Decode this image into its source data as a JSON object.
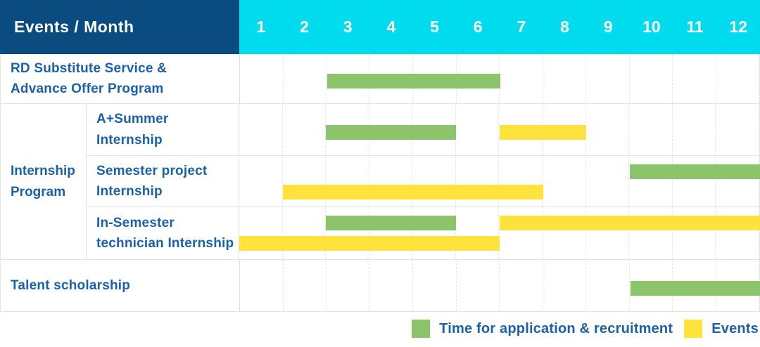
{
  "table": {
    "header": {
      "title": "Events / Month",
      "months": [
        "1",
        "2",
        "3",
        "4",
        "5",
        "6",
        "7",
        "8",
        "9",
        "10",
        "11",
        "12"
      ]
    },
    "rows": {
      "rd": {
        "label": "RD Substitute Service &\nAdvance Offer Program",
        "bars": [
          {
            "color": "green",
            "start": 3,
            "end": 6,
            "line": 0
          }
        ]
      },
      "internship": {
        "label": "Internship\nProgram",
        "children": {
          "summer": {
            "label": "A+Summer\nInternship",
            "bars": [
              {
                "color": "green",
                "start": 3,
                "end": 5,
                "line": 0
              },
              {
                "color": "yellow",
                "start": 7,
                "end": 8,
                "line": 0
              }
            ]
          },
          "semester": {
            "label": "Semester project\nInternship",
            "bars": [
              {
                "color": "green",
                "start": 10,
                "end": 12,
                "line": 1
              },
              {
                "color": "yellow",
                "start": 2,
                "end": 7,
                "line": 2
              }
            ]
          },
          "insemester": {
            "label": "In-Semester\ntechnician Internship",
            "bars": [
              {
                "color": "green",
                "start": 3,
                "end": 5,
                "line": 1
              },
              {
                "color": "yellow",
                "start": 7,
                "end": 12,
                "line": 1
              },
              {
                "color": "yellow",
                "start": 1,
                "end": 6,
                "line": 2
              }
            ]
          }
        }
      },
      "talent": {
        "label": "Talent scholarship",
        "bars": [
          {
            "color": "green",
            "start": 10,
            "end": 12,
            "line": 0
          }
        ]
      }
    }
  },
  "legend": {
    "items": [
      {
        "color": "green",
        "label": "Time for application & recruitment"
      },
      {
        "color": "yellow",
        "label": "Events"
      }
    ]
  },
  "colors": {
    "green": "#8cc46b",
    "yellow": "#ffe23c",
    "navy": "#0a4b80",
    "cyan": "#00dbee",
    "text_blue": "#1a61a7"
  },
  "chart_data": {
    "type": "table",
    "title": "Events / Month",
    "x_axis": {
      "label": "Month",
      "ticks": [
        1,
        2,
        3,
        4,
        5,
        6,
        7,
        8,
        9,
        10,
        11,
        12
      ],
      "range": [
        1,
        12
      ]
    },
    "legend": {
      "application": "Time for application & recruitment",
      "event": "Events",
      "position": "bottom-right"
    },
    "rows": [
      {
        "event": "RD Substitute Service & Advance Offer Program",
        "spans": [
          {
            "type": "application",
            "months": [
              3,
              6
            ]
          }
        ]
      },
      {
        "event": "Internship Program - A+Summer Internship",
        "spans": [
          {
            "type": "application",
            "months": [
              3,
              5
            ]
          },
          {
            "type": "event",
            "months": [
              7,
              8
            ]
          }
        ]
      },
      {
        "event": "Internship Program - Semester project Internship",
        "spans": [
          {
            "type": "application",
            "months": [
              10,
              12
            ]
          },
          {
            "type": "event",
            "months": [
              2,
              7
            ]
          }
        ]
      },
      {
        "event": "Internship Program - In-Semester technician Internship",
        "spans": [
          {
            "type": "application",
            "months": [
              3,
              5
            ]
          },
          {
            "type": "event",
            "months": [
              7,
              12
            ]
          },
          {
            "type": "event",
            "months": [
              1,
              6
            ]
          }
        ]
      },
      {
        "event": "Talent scholarship",
        "spans": [
          {
            "type": "application",
            "months": [
              10,
              12
            ]
          }
        ]
      }
    ]
  }
}
